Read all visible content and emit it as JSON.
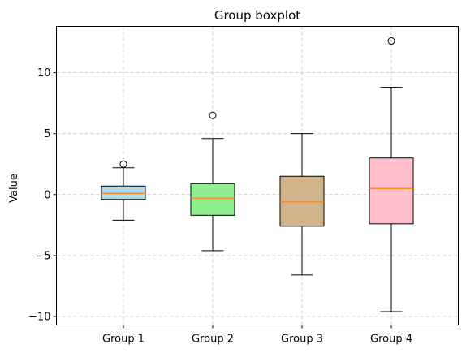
{
  "chart_data": {
    "type": "boxplot",
    "title": "Group boxplot",
    "xlabel": "",
    "ylabel": "Value",
    "ylim": [
      -10.7,
      13.8
    ],
    "yticks": [
      10,
      5,
      0,
      -5,
      -10
    ],
    "ytick_labels": [
      "10",
      "5",
      "0",
      "−5",
      "−10"
    ],
    "grid": true,
    "categories": [
      "Group 1",
      "Group 2",
      "Group 3",
      "Group 4"
    ],
    "groups": [
      {
        "name": "Group 1",
        "whisker_low": -2.1,
        "q1": -0.4,
        "median": 0.1,
        "q3": 0.7,
        "whisker_high": 2.2,
        "outliers": [
          2.5
        ],
        "color": "#add8e6"
      },
      {
        "name": "Group 2",
        "whisker_low": -4.6,
        "q1": -1.7,
        "median": -0.3,
        "q3": 0.9,
        "whisker_high": 4.6,
        "outliers": [
          6.5
        ],
        "color": "#90ee90"
      },
      {
        "name": "Group 3",
        "whisker_low": -6.6,
        "q1": -2.6,
        "median": -0.6,
        "q3": 1.5,
        "whisker_high": 5.0,
        "outliers": [],
        "color": "#d2b48c"
      },
      {
        "name": "Group 4",
        "whisker_low": -9.6,
        "q1": -2.4,
        "median": 0.5,
        "q3": 3.0,
        "whisker_high": 8.8,
        "outliers": [
          12.6
        ],
        "color": "#ffc0cb"
      }
    ],
    "median_color": "#ff7f0e",
    "grid_color": "#b0b0b0"
  }
}
